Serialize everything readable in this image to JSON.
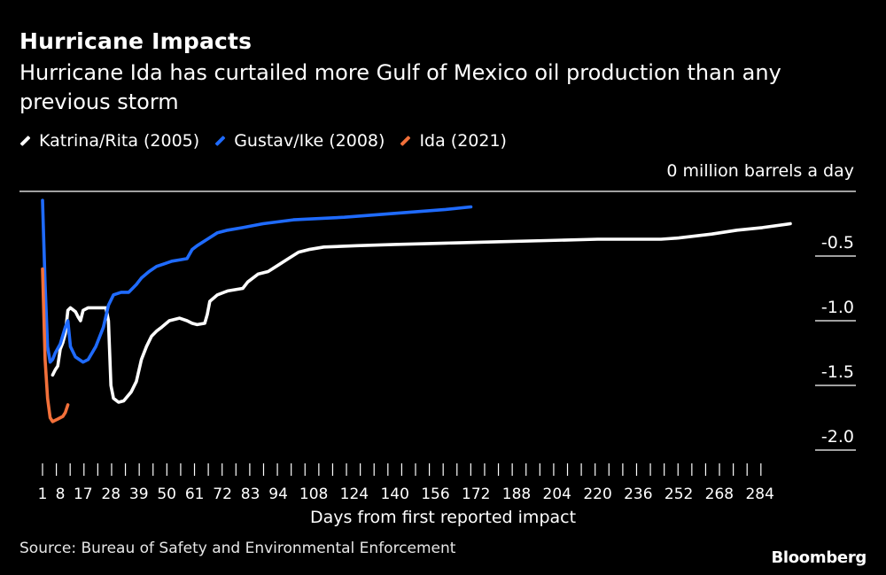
{
  "header": {
    "title": "Hurricane Impacts",
    "subtitle": "Hurricane Ida has curtailed more Gulf of Mexico oil production than any previous storm"
  },
  "footer": {
    "source": "Source: Bureau of Safety and Environmental Enforcement",
    "brand": "Bloomberg"
  },
  "chart_data": {
    "type": "line",
    "title": "Hurricane Impacts",
    "subtitle": "Hurricane Ida has curtailed more Gulf of Mexico oil production than any previous storm",
    "xlabel": "Days from first reported impact",
    "ylabel": "million barrels a day",
    "unit_label": "0 million barrels a day",
    "xlim": [
      1,
      296
    ],
    "ylim": [
      -2.0,
      0
    ],
    "x_ticks": [
      1,
      8,
      17,
      28,
      39,
      50,
      61,
      72,
      83,
      94,
      108,
      124,
      140,
      156,
      172,
      188,
      204,
      220,
      236,
      252,
      268,
      284
    ],
    "y_ticks": [
      -0.5,
      -1.0,
      -1.5,
      -2.0
    ],
    "y_tick_labels": [
      "-0.5",
      "-1.0",
      "-1.5",
      "-2.0"
    ],
    "colors": {
      "katrina": "#ffffff",
      "gustav": "#1f6bff",
      "ida": "#f2703a",
      "background": "#000000",
      "axis": "#ffffff"
    },
    "series": [
      {
        "name": "Katrina/Rita (2005)",
        "key": "katrina",
        "points": [
          [
            5,
            -1.42
          ],
          [
            6,
            -1.38
          ],
          [
            7,
            -1.35
          ],
          [
            8,
            -1.22
          ],
          [
            9,
            -1.17
          ],
          [
            10,
            -1.1
          ],
          [
            11,
            -0.92
          ],
          [
            12,
            -0.9
          ],
          [
            14,
            -0.93
          ],
          [
            15,
            -0.97
          ],
          [
            16,
            -1.0
          ],
          [
            17,
            -0.92
          ],
          [
            19,
            -0.9
          ],
          [
            24,
            -0.9
          ],
          [
            26,
            -0.9
          ],
          [
            27,
            -1.0
          ],
          [
            28,
            -1.5
          ],
          [
            29,
            -1.6
          ],
          [
            31,
            -1.63
          ],
          [
            33,
            -1.62
          ],
          [
            36,
            -1.55
          ],
          [
            38,
            -1.47
          ],
          [
            40,
            -1.3
          ],
          [
            42,
            -1.2
          ],
          [
            44,
            -1.12
          ],
          [
            46,
            -1.08
          ],
          [
            48,
            -1.05
          ],
          [
            51,
            -1.0
          ],
          [
            55,
            -0.98
          ],
          [
            58,
            -1.0
          ],
          [
            60,
            -1.02
          ],
          [
            62,
            -1.03
          ],
          [
            65,
            -1.02
          ],
          [
            66,
            -0.95
          ],
          [
            67,
            -0.85
          ],
          [
            70,
            -0.8
          ],
          [
            74,
            -0.77
          ],
          [
            80,
            -0.75
          ],
          [
            82,
            -0.7
          ],
          [
            86,
            -0.64
          ],
          [
            90,
            -0.62
          ],
          [
            94,
            -0.57
          ],
          [
            98,
            -0.52
          ],
          [
            102,
            -0.47
          ],
          [
            106,
            -0.45
          ],
          [
            112,
            -0.43
          ],
          [
            125,
            -0.42
          ],
          [
            140,
            -0.41
          ],
          [
            160,
            -0.4
          ],
          [
            180,
            -0.39
          ],
          [
            200,
            -0.38
          ],
          [
            220,
            -0.37
          ],
          [
            245,
            -0.37
          ],
          [
            252,
            -0.36
          ],
          [
            265,
            -0.33
          ],
          [
            275,
            -0.3
          ],
          [
            285,
            -0.28
          ],
          [
            296,
            -0.25
          ]
        ]
      },
      {
        "name": "Gustav/Ike (2008)",
        "key": "gustav",
        "points": [
          [
            1,
            -0.07
          ],
          [
            2,
            -0.72
          ],
          [
            3,
            -1.2
          ],
          [
            4,
            -1.32
          ],
          [
            5,
            -1.3
          ],
          [
            6,
            -1.25
          ],
          [
            8,
            -1.18
          ],
          [
            10,
            -1.05
          ],
          [
            11,
            -1.0
          ],
          [
            12,
            -1.2
          ],
          [
            14,
            -1.28
          ],
          [
            17,
            -1.32
          ],
          [
            19,
            -1.3
          ],
          [
            22,
            -1.2
          ],
          [
            25,
            -1.05
          ],
          [
            27,
            -0.88
          ],
          [
            29,
            -0.8
          ],
          [
            32,
            -0.78
          ],
          [
            35,
            -0.78
          ],
          [
            38,
            -0.72
          ],
          [
            40,
            -0.67
          ],
          [
            43,
            -0.62
          ],
          [
            46,
            -0.58
          ],
          [
            49,
            -0.56
          ],
          [
            52,
            -0.54
          ],
          [
            55,
            -0.53
          ],
          [
            58,
            -0.52
          ],
          [
            60,
            -0.45
          ],
          [
            62,
            -0.42
          ],
          [
            66,
            -0.37
          ],
          [
            70,
            -0.32
          ],
          [
            74,
            -0.3
          ],
          [
            80,
            -0.28
          ],
          [
            88,
            -0.25
          ],
          [
            100,
            -0.22
          ],
          [
            120,
            -0.2
          ],
          [
            140,
            -0.17
          ],
          [
            160,
            -0.14
          ],
          [
            170,
            -0.12
          ]
        ]
      },
      {
        "name": "Ida (2021)",
        "key": "ida",
        "points": [
          [
            1,
            -0.6
          ],
          [
            2,
            -1.3
          ],
          [
            3,
            -1.6
          ],
          [
            4,
            -1.75
          ],
          [
            5,
            -1.78
          ],
          [
            6,
            -1.77
          ],
          [
            7,
            -1.76
          ],
          [
            8,
            -1.75
          ],
          [
            9,
            -1.74
          ],
          [
            10,
            -1.71
          ],
          [
            11,
            -1.65
          ]
        ]
      }
    ]
  }
}
